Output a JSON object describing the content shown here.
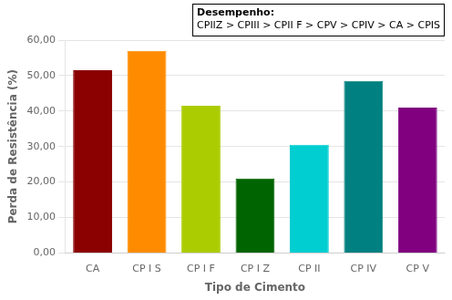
{
  "chart_data": {
    "type": "bar",
    "categories": [
      "CA",
      "CP I S",
      "CP I F",
      "CP I Z",
      "CP II",
      "CP IV",
      "CP V"
    ],
    "values": [
      51.5,
      57.0,
      41.5,
      21.0,
      30.5,
      48.5,
      41.0
    ],
    "colors": [
      "#8B0000",
      "#FF8C00",
      "#AACC00",
      "#006400",
      "#00CED1",
      "#008080",
      "#800080"
    ],
    "xlabel": "Tipo de Cimento",
    "ylabel": "Perda de Resistência (%)",
    "ylim": [
      0,
      60
    ],
    "yticks": [
      {
        "value": 0,
        "label": "0,00"
      },
      {
        "value": 10,
        "label": "10,00"
      },
      {
        "value": 20,
        "label": "20,00"
      },
      {
        "value": 30,
        "label": "30,00"
      },
      {
        "value": 40,
        "label": "40,00"
      },
      {
        "value": 50,
        "label": "50,00"
      },
      {
        "value": 60,
        "label": "60,00"
      }
    ],
    "annotations": [
      "Desempenho:",
      "CPIIZ > CPIII > CPII F > CPV > CPIV > CA > CPIS"
    ],
    "grid": true
  }
}
